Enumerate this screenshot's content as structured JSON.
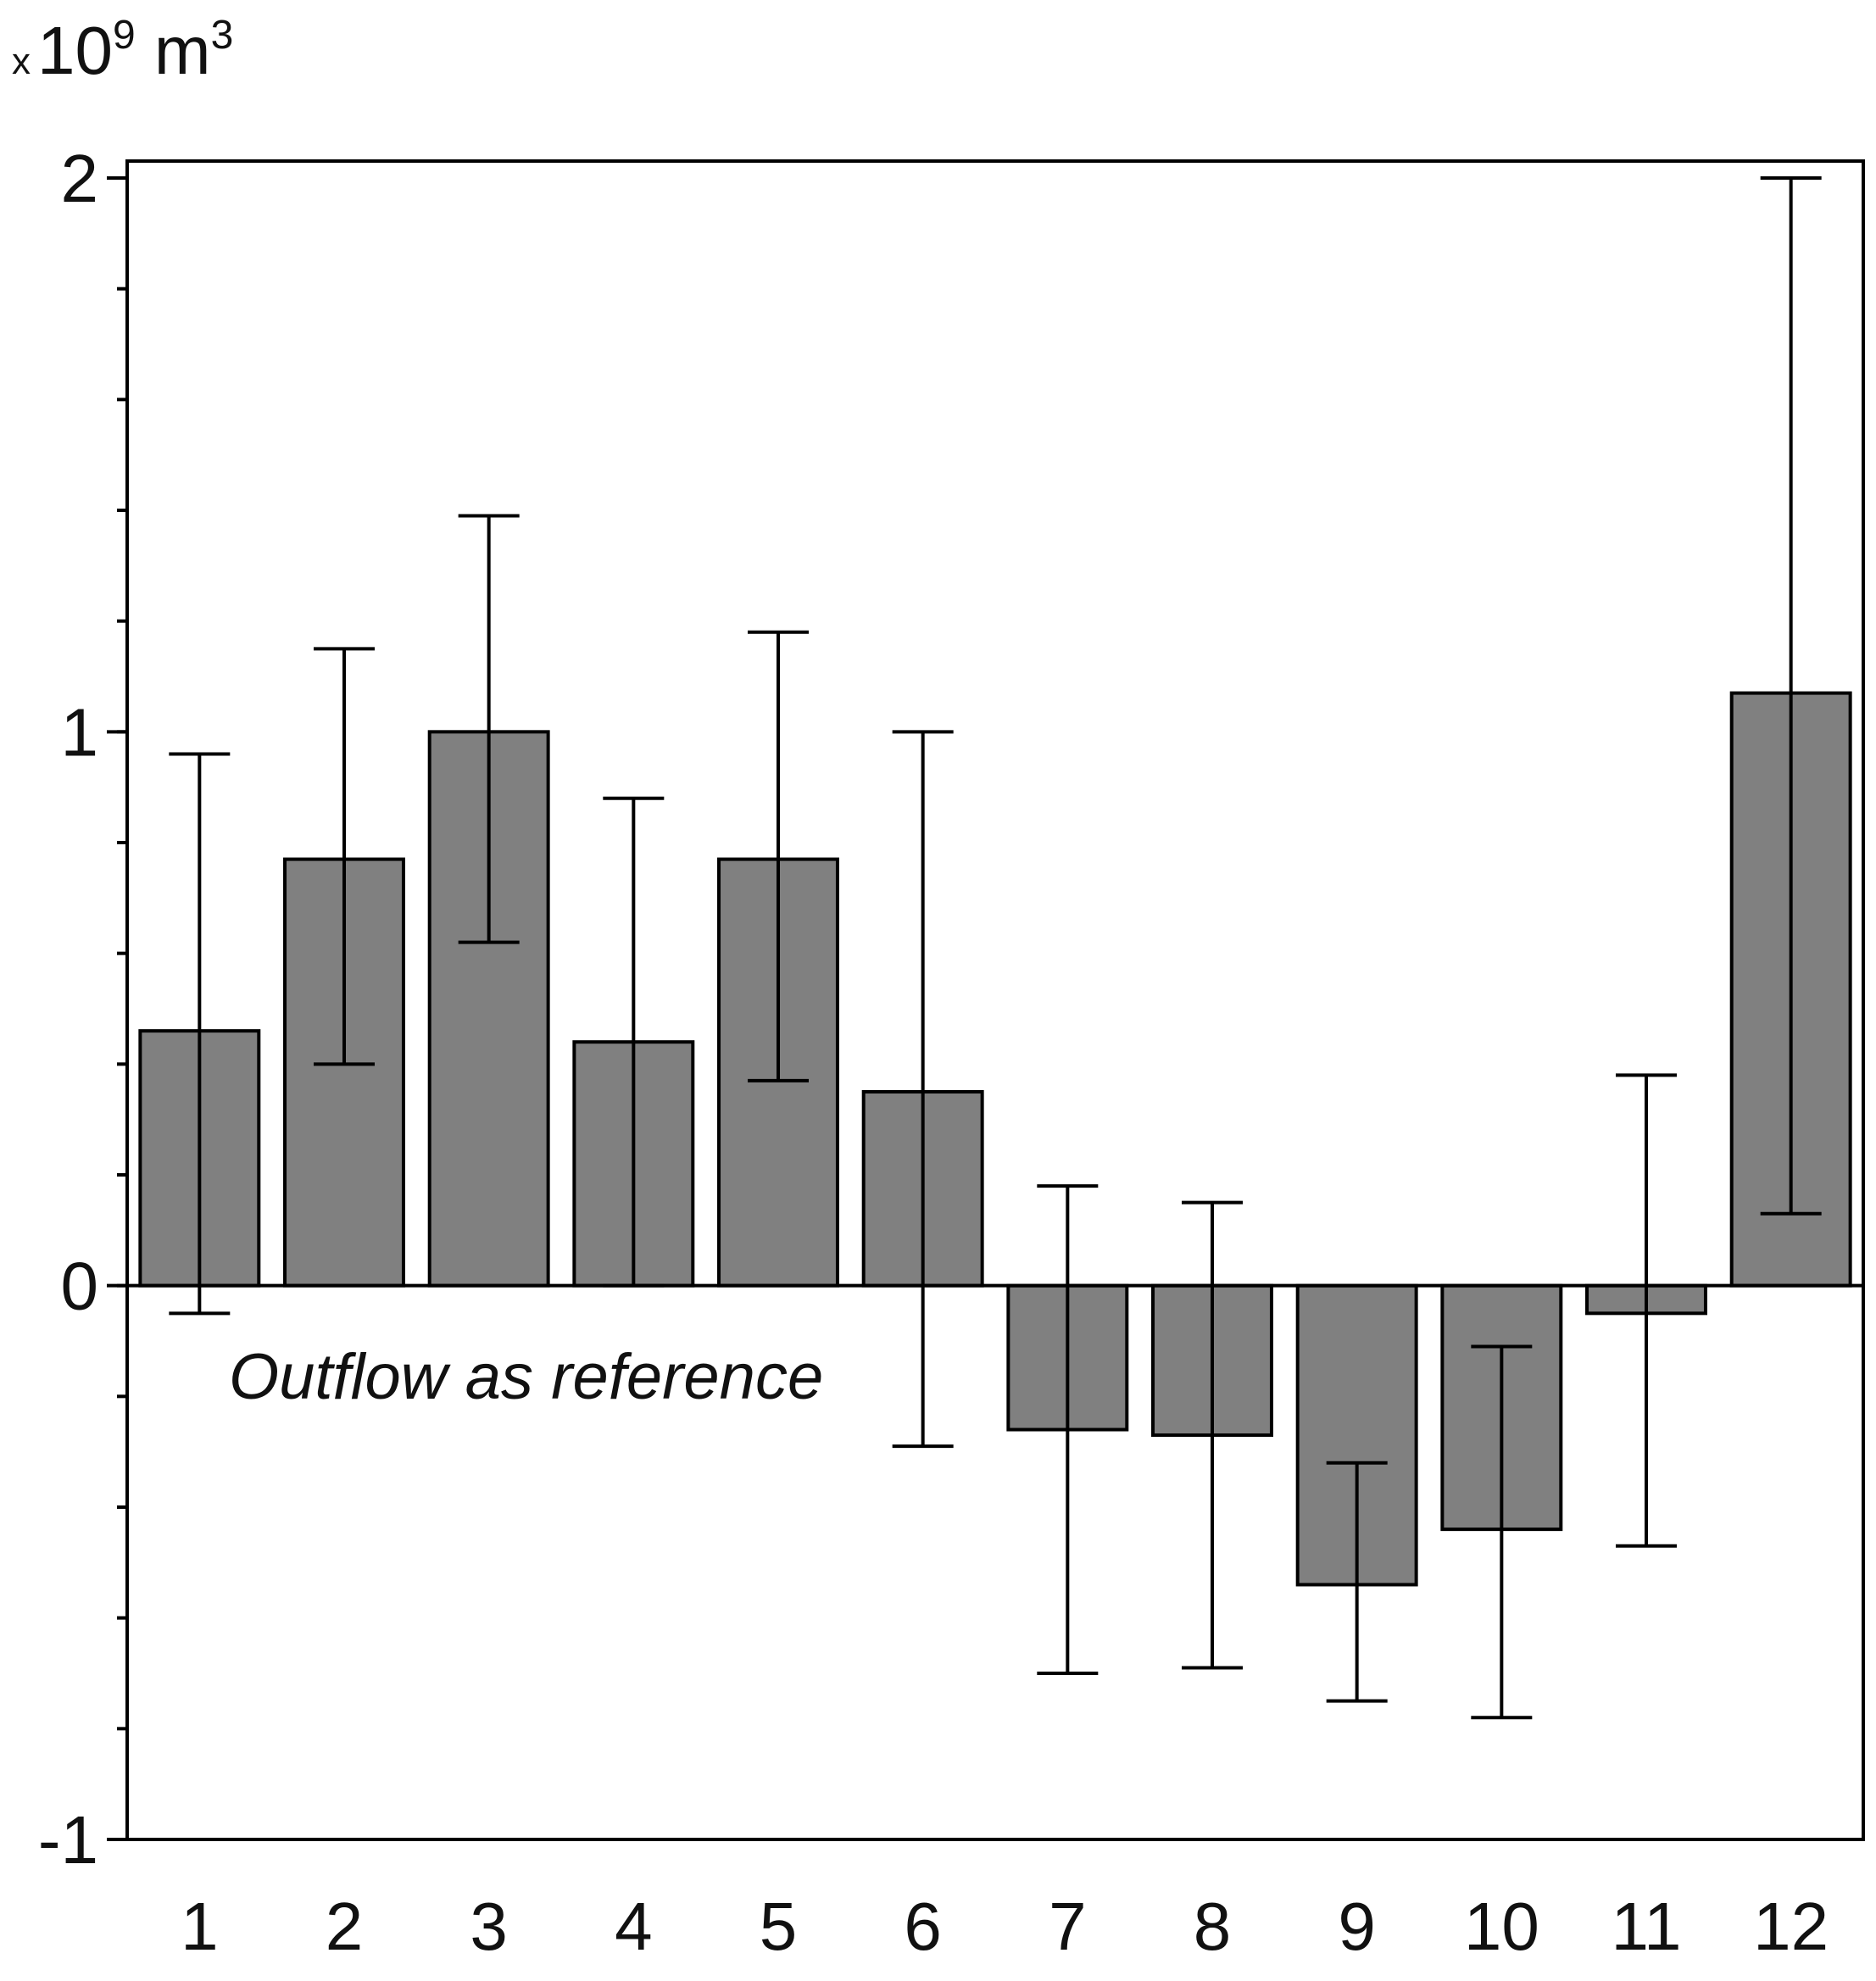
{
  "chart_data": {
    "type": "bar",
    "title": "",
    "xlabel": "",
    "ylabel": "",
    "unit_label": {
      "prefix": "x",
      "base": "10",
      "exp1": "9",
      "unit": " m",
      "exp2": "3"
    },
    "categories": [
      "1",
      "2",
      "3",
      "4",
      "5",
      "6",
      "7",
      "8",
      "9",
      "10",
      "11",
      "12"
    ],
    "values": [
      0.46,
      0.77,
      1.0,
      0.44,
      0.77,
      0.35,
      -0.26,
      -0.27,
      -0.54,
      -0.44,
      -0.05,
      1.07
    ],
    "error_low": [
      -0.05,
      0.4,
      0.62,
      0.0,
      0.37,
      -0.29,
      -0.7,
      -0.69,
      -0.75,
      -0.78,
      -0.47,
      0.13
    ],
    "error_high": [
      0.96,
      1.15,
      1.39,
      0.88,
      1.18,
      1.0,
      0.18,
      0.15,
      -0.32,
      -0.11,
      0.38,
      2.0
    ],
    "ylim": [
      -1,
      2
    ],
    "yticks": [
      "2",
      "1",
      "0",
      "-1"
    ],
    "annotation": "Outflow as reference",
    "bar_color": "#808080",
    "edge_color": "#000000"
  }
}
